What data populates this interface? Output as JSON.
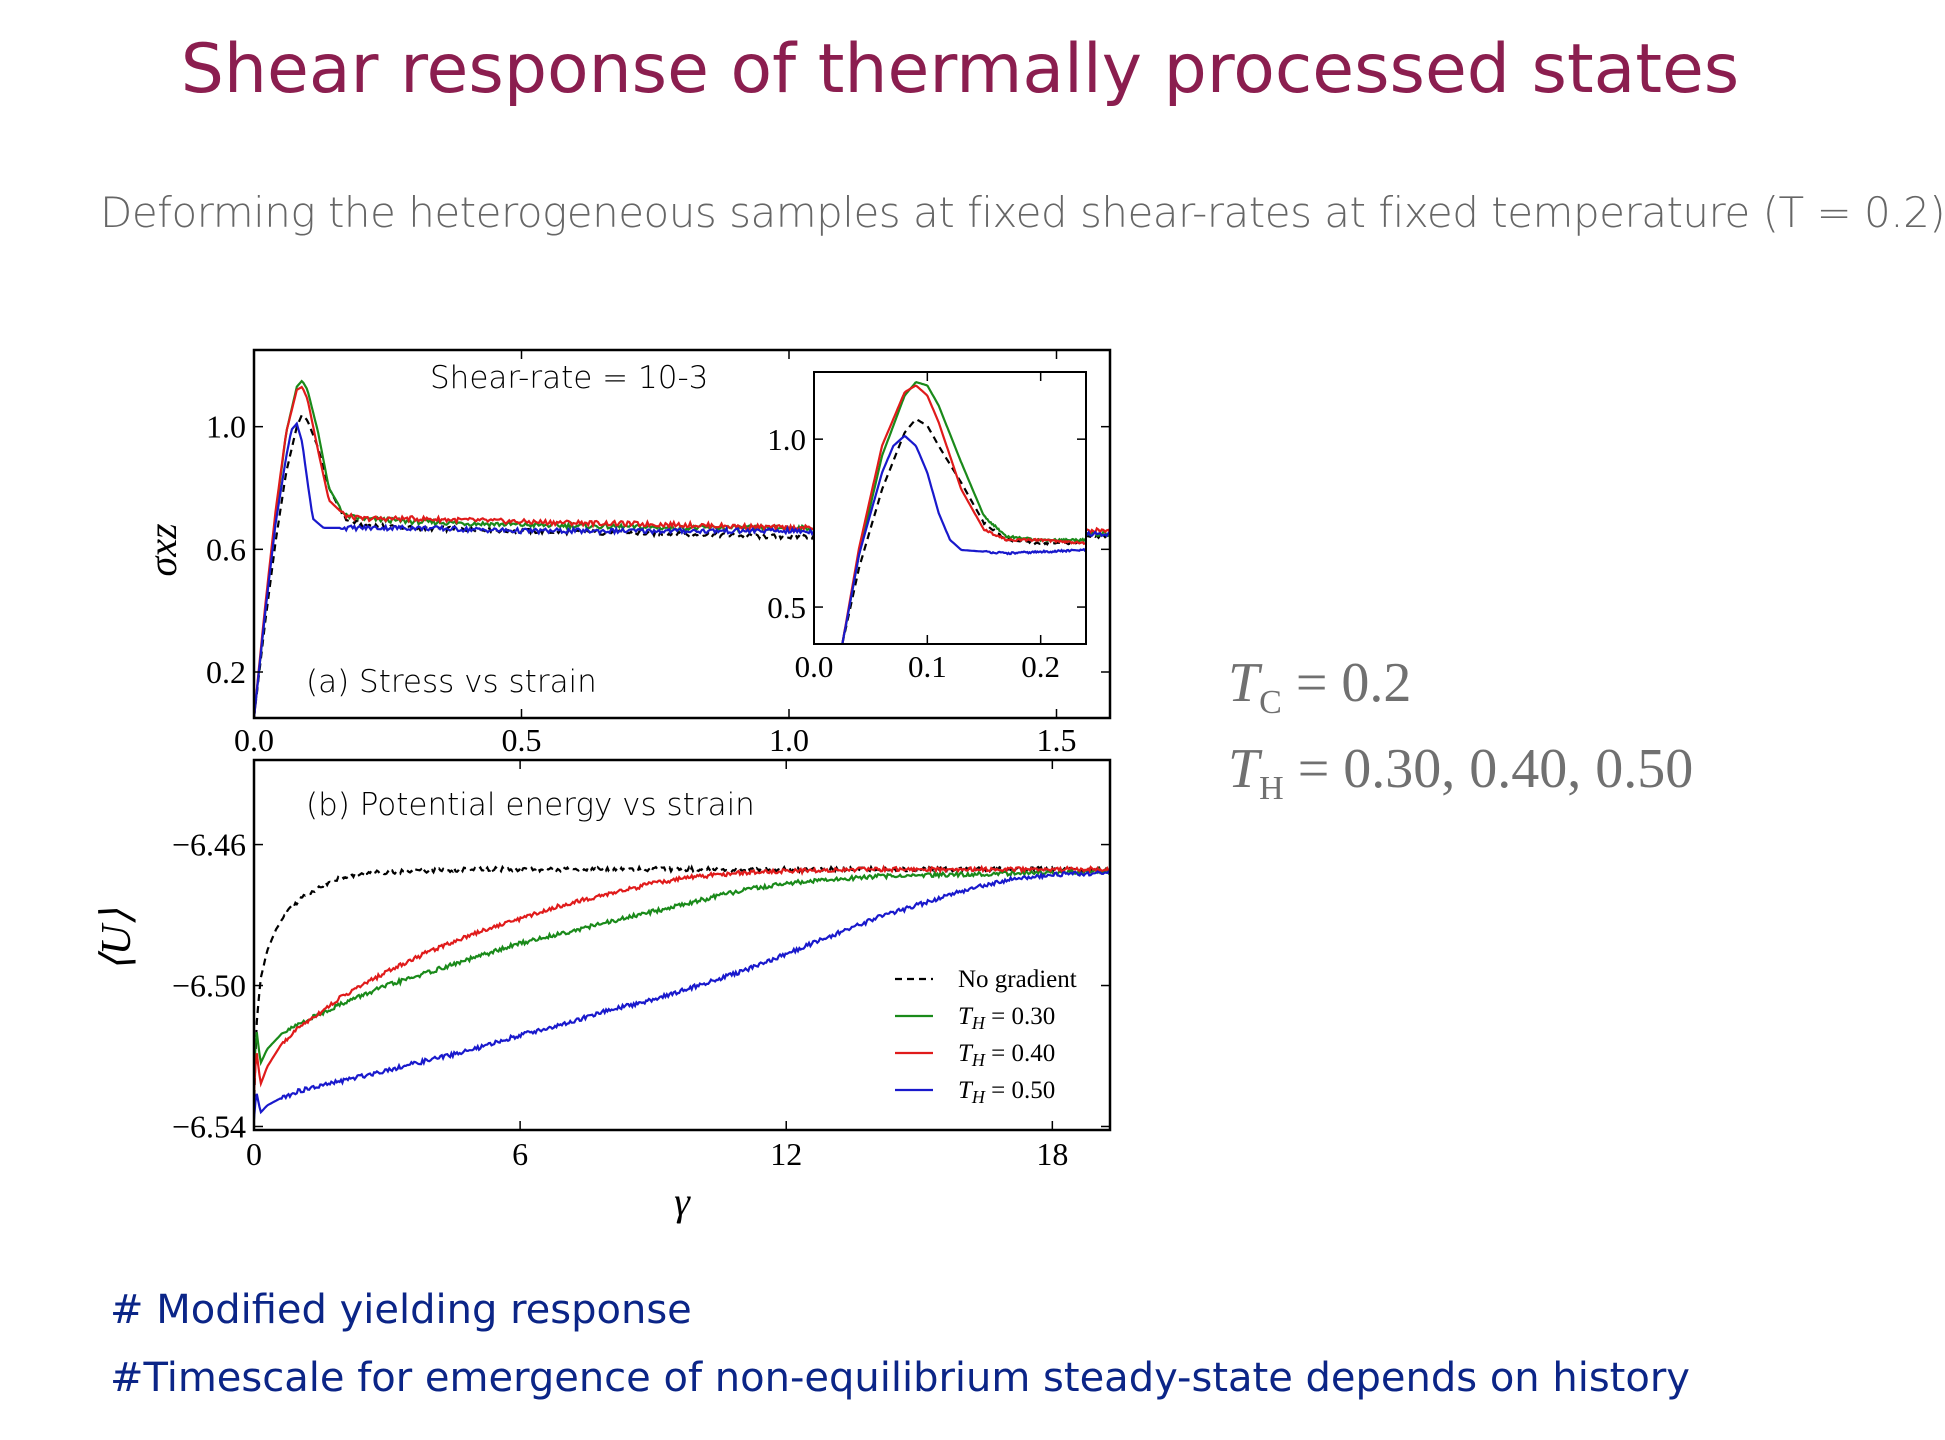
{
  "slide": {
    "title": "Shear response of  thermally processed states",
    "subtitle": "Deforming the heterogeneous samples at fixed shear-rates at fixed temperature (T = 0.2)",
    "params": {
      "tc_symbol": "T",
      "tc_sub": "C",
      "tc_value": "= 0.2",
      "th_symbol": "T",
      "th_sub": "H",
      "th_value": "= 0.30, 0.40, 0.50"
    },
    "bullets": [
      "# Modified yielding response",
      "#Timescale for emergence of non-equilibrium steady-state depends on history"
    ]
  },
  "chart_data": [
    {
      "id": "panel-a",
      "type": "line",
      "annotation": "Shear-rate = 10-3",
      "label": "(a) Stress vs strain",
      "ylabel": "σxz",
      "xlim": [
        0,
        1.6
      ],
      "ylim": [
        0.05,
        1.25
      ],
      "xticks": [
        "0.0",
        "0.5",
        "1.0",
        "1.5"
      ],
      "yticks": [
        "0.2",
        "0.6",
        "1.0"
      ],
      "colors": {
        "No gradient": "#000000",
        "T_H = 0.30": "#1a8a1a",
        "T_H = 0.40": "#e01b1b",
        "T_H = 0.50": "#1919cc"
      },
      "series": [
        {
          "name": "No gradient",
          "x": [
            0,
            0.02,
            0.04,
            0.06,
            0.08,
            0.09,
            0.1,
            0.12,
            0.14,
            0.17,
            0.2,
            0.3,
            0.5,
            0.8,
            1.0,
            1.2,
            1.6
          ],
          "y": [
            0.05,
            0.35,
            0.62,
            0.85,
            1.0,
            1.04,
            1.02,
            0.93,
            0.8,
            0.7,
            0.68,
            0.67,
            0.66,
            0.65,
            0.64,
            0.65,
            0.64
          ]
        },
        {
          "name": "T_H = 0.30",
          "x": [
            0,
            0.02,
            0.04,
            0.06,
            0.08,
            0.09,
            0.1,
            0.12,
            0.14,
            0.17,
            0.2,
            0.3,
            0.5,
            0.8,
            1.0,
            1.2,
            1.6
          ],
          "y": [
            0.05,
            0.38,
            0.7,
            0.98,
            1.13,
            1.15,
            1.12,
            0.98,
            0.8,
            0.71,
            0.7,
            0.69,
            0.68,
            0.67,
            0.67,
            0.66,
            0.65
          ]
        },
        {
          "name": "T_H = 0.40",
          "x": [
            0,
            0.02,
            0.04,
            0.06,
            0.08,
            0.09,
            0.1,
            0.12,
            0.14,
            0.17,
            0.2,
            0.3,
            0.5,
            0.8,
            1.0,
            1.2,
            1.6
          ],
          "y": [
            0.05,
            0.4,
            0.72,
            0.98,
            1.12,
            1.13,
            1.09,
            0.92,
            0.76,
            0.71,
            0.7,
            0.7,
            0.69,
            0.68,
            0.67,
            0.67,
            0.66
          ]
        },
        {
          "name": "T_H = 0.50",
          "x": [
            0,
            0.02,
            0.04,
            0.06,
            0.07,
            0.08,
            0.09,
            0.1,
            0.11,
            0.13,
            0.2,
            0.3,
            0.5,
            0.8,
            1.0,
            1.2,
            1.6
          ],
          "y": [
            0.05,
            0.38,
            0.68,
            0.9,
            0.99,
            1.01,
            0.95,
            0.82,
            0.7,
            0.67,
            0.67,
            0.67,
            0.66,
            0.66,
            0.66,
            0.65,
            0.65
          ]
        }
      ]
    },
    {
      "id": "panel-a-inset",
      "type": "line",
      "xlim": [
        0,
        0.24
      ],
      "ylim": [
        0.39,
        1.2
      ],
      "xticks": [
        "0.0",
        "0.1",
        "0.2"
      ],
      "yticks": [
        "0.5",
        "1.0"
      ],
      "series": [
        {
          "name": "No gradient",
          "x": [
            0.025,
            0.04,
            0.06,
            0.08,
            0.09,
            0.1,
            0.11,
            0.13,
            0.15,
            0.17,
            0.2,
            0.24
          ],
          "y": [
            0.39,
            0.62,
            0.85,
            1.02,
            1.06,
            1.04,
            0.98,
            0.87,
            0.75,
            0.7,
            0.69,
            0.69
          ]
        },
        {
          "name": "T_H = 0.30",
          "x": [
            0.025,
            0.04,
            0.06,
            0.08,
            0.09,
            0.1,
            0.11,
            0.13,
            0.15,
            0.17,
            0.2,
            0.24
          ],
          "y": [
            0.39,
            0.66,
            0.95,
            1.13,
            1.17,
            1.16,
            1.1,
            0.93,
            0.77,
            0.71,
            0.7,
            0.7
          ]
        },
        {
          "name": "T_H = 0.40",
          "x": [
            0.025,
            0.04,
            0.06,
            0.08,
            0.09,
            0.1,
            0.11,
            0.13,
            0.15,
            0.17,
            0.2,
            0.24
          ],
          "y": [
            0.39,
            0.68,
            0.98,
            1.14,
            1.16,
            1.13,
            1.05,
            0.85,
            0.73,
            0.7,
            0.7,
            0.69
          ]
        },
        {
          "name": "T_H = 0.50",
          "x": [
            0.025,
            0.04,
            0.06,
            0.07,
            0.08,
            0.09,
            0.1,
            0.11,
            0.12,
            0.13,
            0.17,
            0.24
          ],
          "y": [
            0.39,
            0.66,
            0.9,
            0.98,
            1.01,
            0.98,
            0.9,
            0.78,
            0.7,
            0.67,
            0.66,
            0.67
          ]
        }
      ]
    },
    {
      "id": "panel-b",
      "type": "line",
      "label": "(b) Potential energy vs strain",
      "xlabel": "γ",
      "ylabel": "⟨U⟩",
      "xlim": [
        0,
        19.3
      ],
      "ylim": [
        -6.541,
        -6.436
      ],
      "xticks": [
        "0",
        "6",
        "12",
        "18"
      ],
      "yticks": [
        "−6.54",
        "−6.50",
        "−6.46"
      ],
      "legend": {
        "position": "lower-right",
        "entries": [
          "No gradient",
          "T_H = 0.30",
          "T_H = 0.40",
          "T_H = 0.50"
        ]
      },
      "series": [
        {
          "name": "No gradient",
          "x": [
            0,
            0.05,
            0.15,
            0.3,
            0.5,
            0.8,
            1.2,
            1.8,
            2.5,
            3.5,
            5,
            7,
            10,
            13,
            19.3
          ],
          "y": [
            -6.535,
            -6.512,
            -6.498,
            -6.49,
            -6.484,
            -6.478,
            -6.474,
            -6.47,
            -6.468,
            -6.4675,
            -6.467,
            -6.467,
            -6.467,
            -6.467,
            -6.467
          ]
        },
        {
          "name": "T_H = 0.30",
          "x": [
            0,
            0.05,
            0.15,
            0.3,
            0.6,
            1,
            2,
            3,
            4,
            5,
            6,
            7,
            8,
            9,
            10,
            11,
            12,
            14,
            19.3
          ],
          "y": [
            -6.526,
            -6.512,
            -6.522,
            -6.518,
            -6.514,
            -6.511,
            -6.505,
            -6.5,
            -6.496,
            -6.492,
            -6.488,
            -6.485,
            -6.482,
            -6.479,
            -6.476,
            -6.473,
            -6.471,
            -6.469,
            -6.4675
          ]
        },
        {
          "name": "T_H = 0.40",
          "x": [
            0,
            0.05,
            0.15,
            0.3,
            0.6,
            1,
            2,
            3,
            4,
            5,
            6,
            7,
            8,
            9,
            10,
            11,
            12,
            14,
            19.3
          ],
          "y": [
            -6.531,
            -6.518,
            -6.528,
            -6.523,
            -6.517,
            -6.512,
            -6.503,
            -6.496,
            -6.49,
            -6.485,
            -6.481,
            -6.477,
            -6.474,
            -6.471,
            -6.469,
            -6.468,
            -6.4675,
            -6.467,
            -6.467
          ]
        },
        {
          "name": "T_H = 0.50",
          "x": [
            0,
            0.05,
            0.15,
            0.3,
            0.6,
            1,
            2,
            3,
            4,
            5,
            6,
            7,
            8,
            9,
            10,
            11,
            12,
            13,
            14,
            15,
            16,
            17,
            18,
            19.3
          ],
          "y": [
            -6.538,
            -6.53,
            -6.536,
            -6.534,
            -6.532,
            -6.53,
            -6.527,
            -6.524,
            -6.521,
            -6.518,
            -6.514,
            -6.511,
            -6.507,
            -6.504,
            -6.5,
            -6.496,
            -6.491,
            -6.486,
            -6.481,
            -6.477,
            -6.473,
            -6.47,
            -6.4685,
            -6.468
          ]
        }
      ]
    }
  ]
}
